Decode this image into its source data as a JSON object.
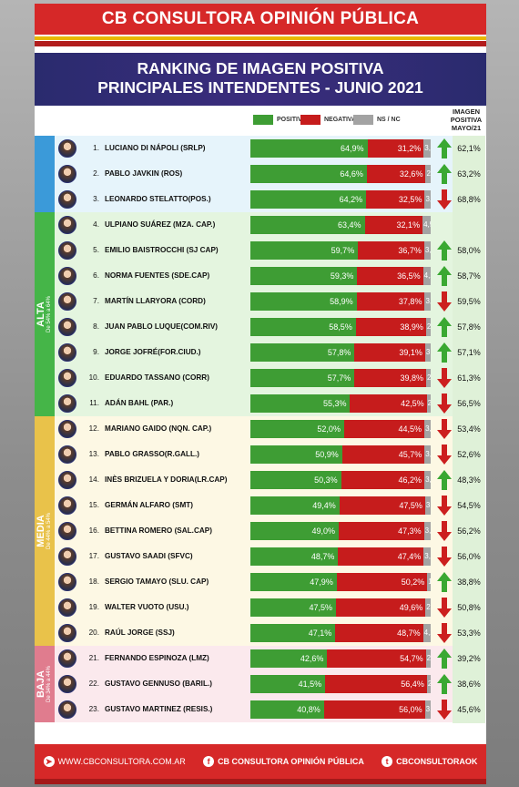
{
  "header": {
    "brand": "CB CONSULTORA OPINIÓN PÚBLICA"
  },
  "title": {
    "line1": "RANKING DE IMAGEN POSITIVA",
    "line2": "PRINCIPALES INTENDENTES - JUNIO 2021"
  },
  "legend": {
    "positiva": "POSITIVA",
    "negativa": "NEGATIVA",
    "ns": "NS / NC"
  },
  "mayo_header": {
    "l1": "IMAGEN",
    "l2": "POSITIVA",
    "l3": "MAYO/21"
  },
  "colors": {
    "positiva": "#3e9d34",
    "negativa": "#c61c1c",
    "ns": "#a3a3a3",
    "brand_red": "#d62828",
    "title_bg": "#2d2c72"
  },
  "groups": [
    {
      "key": "top",
      "label": "",
      "range": "",
      "color": "#3b9ad9",
      "bg": "#e6f4fb",
      "rows": [
        0,
        2
      ]
    },
    {
      "key": "alta",
      "label": "ALTA",
      "range": "De 54% a 64%",
      "color": "#45b548",
      "bg": "#e4f5df",
      "rows": [
        3,
        10
      ]
    },
    {
      "key": "media",
      "label": "MEDIA",
      "range": "De 44% a 54%",
      "color": "#e9c24a",
      "bg": "#fdf8e4",
      "rows": [
        11,
        19
      ]
    },
    {
      "key": "baja",
      "label": "BAJA",
      "range": "De 34% a 44%",
      "color": "#e07c8e",
      "bg": "#fbe9ed",
      "rows": [
        20,
        22
      ]
    }
  ],
  "chart_data": {
    "type": "bar",
    "title": "RANKING DE IMAGEN POSITIVA PRINCIPALES INTENDENTES - JUNIO 2021",
    "series": [
      {
        "name": "POSITIVA",
        "key": "pos"
      },
      {
        "name": "NEGATIVA",
        "key": "neg"
      },
      {
        "name": "NS / NC",
        "key": "ns"
      }
    ],
    "rows": [
      {
        "rank": "1.",
        "name": "LUCIANO DI NÁPOLI (SRLP)",
        "pos": 64.9,
        "neg": 31.2,
        "ns": 3.9,
        "pos_label": "64,9%",
        "neg_label": "31,2%",
        "ns_label": "3,9",
        "trend": "up",
        "mayo": "62,1%"
      },
      {
        "rank": "2.",
        "name": "PABLO JAVKIN (ROS)",
        "pos": 64.6,
        "neg": 32.6,
        "ns": 2.8,
        "pos_label": "64,6%",
        "neg_label": "32,6%",
        "ns_label": "2,8",
        "trend": "up",
        "mayo": "63,2%"
      },
      {
        "rank": "3.",
        "name": "LEONARDO STELATTO(POS.)",
        "pos": 64.2,
        "neg": 32.5,
        "ns": 3.3,
        "pos_label": "64,2%",
        "neg_label": "32,5%",
        "ns_label": "3,3",
        "trend": "down",
        "mayo": "68,8%"
      },
      {
        "rank": "4.",
        "name": "ULPIANO SUÁREZ (MZA. CAP.)",
        "pos": 63.4,
        "neg": 32.1,
        "ns": 4.5,
        "pos_label": "63,4%",
        "neg_label": "32,1%",
        "ns_label": "4,5",
        "trend": "none",
        "mayo": ""
      },
      {
        "rank": "5.",
        "name": "EMILIO BAISTROCCHI (SJ CAP)",
        "pos": 59.7,
        "neg": 36.7,
        "ns": 3.6,
        "pos_label": "59,7%",
        "neg_label": "36,7%",
        "ns_label": "3,6",
        "trend": "up",
        "mayo": "58,0%"
      },
      {
        "rank": "6.",
        "name": "NORMA FUENTES (SDE.CAP)",
        "pos": 59.3,
        "neg": 36.5,
        "ns": 4.2,
        "pos_label": "59,3%",
        "neg_label": "36,5%",
        "ns_label": "4,2",
        "trend": "up",
        "mayo": "58,7%"
      },
      {
        "rank": "7.",
        "name": "MARTÍN LLARYORA (CORD)",
        "pos": 58.9,
        "neg": 37.8,
        "ns": 3.3,
        "pos_label": "58,9%",
        "neg_label": "37,8%",
        "ns_label": "3,3",
        "trend": "down",
        "mayo": "59,5%"
      },
      {
        "rank": "8.",
        "name": "JUAN PABLO LUQUE(COM.RIV)",
        "pos": 58.5,
        "neg": 38.9,
        "ns": 2.6,
        "pos_label": "58,5%",
        "neg_label": "38,9%",
        "ns_label": "2,6",
        "trend": "up",
        "mayo": "57,8%"
      },
      {
        "rank": "9.",
        "name": "JORGE JOFRÉ(FOR.CIUD.)",
        "pos": 57.8,
        "neg": 39.1,
        "ns": 3.1,
        "pos_label": "57,8%",
        "neg_label": "39,1%",
        "ns_label": "3,1",
        "trend": "up",
        "mayo": "57,1%"
      },
      {
        "rank": "10.",
        "name": "EDUARDO TASSANO (CORR)",
        "pos": 57.7,
        "neg": 39.8,
        "ns": 2.5,
        "pos_label": "57,7%",
        "neg_label": "39,8%",
        "ns_label": "2,5",
        "trend": "down",
        "mayo": "61,3%"
      },
      {
        "rank": "11.",
        "name": "ADÁN BAHL (PAR.)",
        "pos": 55.3,
        "neg": 42.5,
        "ns": 2.2,
        "pos_label": "55,3%",
        "neg_label": "42,5%",
        "ns_label": "2,2",
        "trend": "down",
        "mayo": "56,5%"
      },
      {
        "rank": "12.",
        "name": "MARIANO GAIDO (NQN. CAP.)",
        "pos": 52.0,
        "neg": 44.5,
        "ns": 3.5,
        "pos_label": "52,0%",
        "neg_label": "44,5%",
        "ns_label": "3,5",
        "trend": "down",
        "mayo": "53,4%"
      },
      {
        "rank": "13.",
        "name": "PABLO GRASSO(R.GALL.)",
        "pos": 50.9,
        "neg": 45.7,
        "ns": 3.4,
        "pos_label": "50,9%",
        "neg_label": "45,7%",
        "ns_label": "3,4",
        "trend": "down",
        "mayo": "52,6%"
      },
      {
        "rank": "14.",
        "name": "INÈS BRIZUELA Y DORIA(LR.CAP)",
        "pos": 50.3,
        "neg": 46.2,
        "ns": 3.5,
        "pos_label": "50,3%",
        "neg_label": "46,2%",
        "ns_label": "3,5",
        "trend": "up",
        "mayo": "48,3%"
      },
      {
        "rank": "15.",
        "name": "GERMÁN ALFARO (SMT)",
        "pos": 49.4,
        "neg": 47.5,
        "ns": 3.1,
        "pos_label": "49,4%",
        "neg_label": "47,5%",
        "ns_label": "3,1",
        "trend": "down",
        "mayo": "54,5%"
      },
      {
        "rank": "16.",
        "name": "BETTINA ROMERO (SAL.CAP)",
        "pos": 49.0,
        "neg": 47.3,
        "ns": 3.7,
        "pos_label": "49,0%",
        "neg_label": "47,3%",
        "ns_label": "3,7",
        "trend": "down",
        "mayo": "56,2%"
      },
      {
        "rank": "17.",
        "name": "GUSTAVO SAADI (SFVC)",
        "pos": 48.7,
        "neg": 47.4,
        "ns": 3.9,
        "pos_label": "48,7%",
        "neg_label": "47,4%",
        "ns_label": "3,9",
        "trend": "down",
        "mayo": "56,0%"
      },
      {
        "rank": "18.",
        "name": "SERGIO TAMAYO (SLU. CAP)",
        "pos": 47.9,
        "neg": 50.2,
        "ns": 1.9,
        "pos_label": "47,9%",
        "neg_label": "50,2%",
        "ns_label": "1,9",
        "trend": "up",
        "mayo": "38,8%"
      },
      {
        "rank": "19.",
        "name": "WALTER VUOTO (USU.)",
        "pos": 47.5,
        "neg": 49.6,
        "ns": 2.9,
        "pos_label": "47,5%",
        "neg_label": "49,6%",
        "ns_label": "2,9",
        "trend": "down",
        "mayo": "50,8%"
      },
      {
        "rank": "20.",
        "name": "RAÚL JORGE (SSJ)",
        "pos": 47.1,
        "neg": 48.7,
        "ns": 4.2,
        "pos_label": "47,1%",
        "neg_label": "48,7%",
        "ns_label": "4,2",
        "trend": "down",
        "mayo": "53,3%"
      },
      {
        "rank": "21.",
        "name": "FERNANDO ESPINOZA (LMZ)",
        "pos": 42.6,
        "neg": 54.7,
        "ns": 2.7,
        "pos_label": "42,6%",
        "neg_label": "54,7%",
        "ns_label": "2,7",
        "trend": "up",
        "mayo": "39,2%"
      },
      {
        "rank": "22.",
        "name": "GUSTAVO GENNUSO (BARIL.)",
        "pos": 41.5,
        "neg": 56.4,
        "ns": 2.1,
        "pos_label": "41,5%",
        "neg_label": "56,4%",
        "ns_label": "2,1",
        "trend": "up",
        "mayo": "38,6%"
      },
      {
        "rank": "23.",
        "name": "GUSTAVO MARTINEZ (RESIS.)",
        "pos": 40.8,
        "neg": 56.0,
        "ns": 3.2,
        "pos_label": "40,8%",
        "neg_label": "56,0%",
        "ns_label": "3,2",
        "trend": "down",
        "mayo": "45,6%"
      }
    ]
  },
  "footer": {
    "web": "WWW.CBCONSULTORA.COM.AR",
    "facebook": "CB CONSULTORA OPINIÓN PÚBLICA",
    "twitter": "CBCONSULTORAOK"
  }
}
